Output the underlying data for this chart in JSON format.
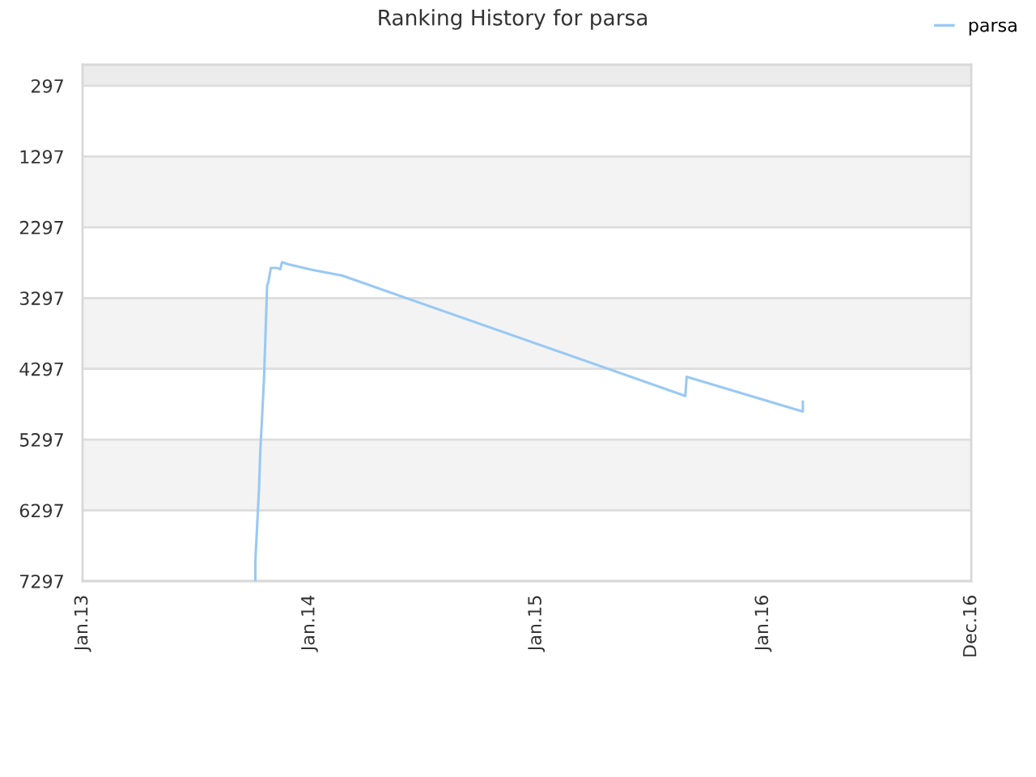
{
  "chart_data": {
    "type": "line",
    "title": "Ranking History for parsa",
    "x": [
      "2013-10-06",
      "2013-10-06",
      "2013-10-09",
      "2013-10-12",
      "2013-10-14",
      "2013-10-17",
      "2013-10-20",
      "2013-10-22",
      "2013-10-25",
      "2013-10-27",
      "2013-10-31",
      "2013-11-09",
      "2013-11-15",
      "2013-11-18",
      "2013-11-28",
      "2014-01-06",
      "2014-02-23",
      "2015-08-29",
      "2015-08-31",
      "2016-03-05",
      "2016-03-05"
    ],
    "series": [
      {
        "name": "parsa",
        "color": "#99c9f5",
        "values": [
          7290,
          7020,
          6500,
          5980,
          5460,
          4960,
          4430,
          3910,
          3120,
          3070,
          2870,
          2870,
          2890,
          2790,
          2820,
          2900,
          2980,
          4680,
          4410,
          4900,
          4760
        ]
      }
    ],
    "xlim": [
      "2013-01-01",
      "2016-12-01"
    ],
    "xticks": [
      {
        "value": "2013-01-01",
        "label": "Jan.13"
      },
      {
        "value": "2014-01-01",
        "label": "Jan.14"
      },
      {
        "value": "2015-01-01",
        "label": "Jan.15"
      },
      {
        "value": "2016-01-01",
        "label": "Jan.16"
      },
      {
        "value": "2016-12-01",
        "label": "Dec.16"
      }
    ],
    "ylim": [
      7297,
      0
    ],
    "yticks": [
      297,
      1297,
      2297,
      3297,
      4297,
      5297,
      6297,
      7297
    ],
    "bands": [
      {
        "axis": "y",
        "from": 0,
        "to": 297,
        "color": "#ececec"
      },
      {
        "axis": "y",
        "from": 1297,
        "to": 2297,
        "color": "#f3f3f3"
      },
      {
        "axis": "y",
        "from": 3297,
        "to": 4297,
        "color": "#f3f3f3"
      },
      {
        "axis": "y",
        "from": 5297,
        "to": 6297,
        "color": "#f3f3f3"
      }
    ],
    "grid": "y",
    "legend": "top right",
    "marker": "none",
    "line_style": "solid"
  }
}
